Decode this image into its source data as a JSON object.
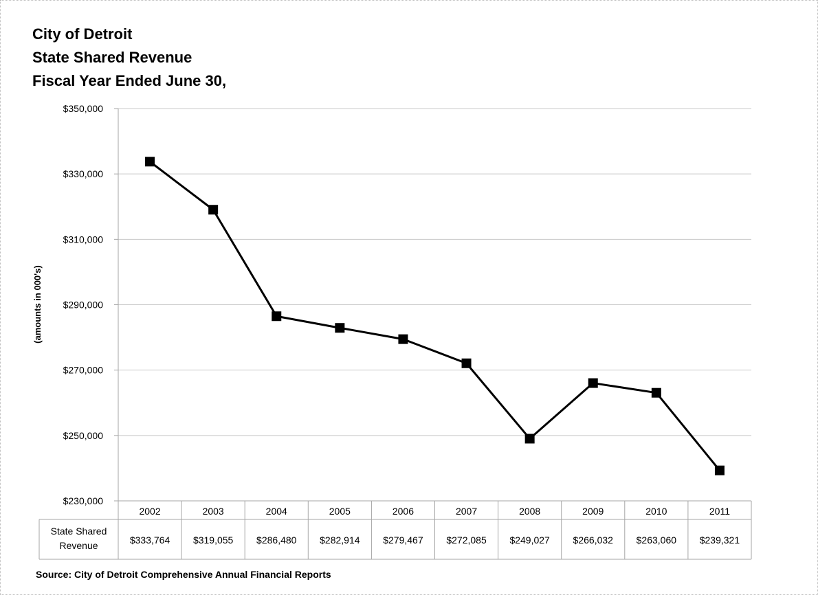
{
  "chart_data": {
    "type": "line",
    "title": [
      "City of Detroit",
      "State Shared Revenue",
      "Fiscal Year Ended June 30,"
    ],
    "ylabel": "(amounts in 000's)",
    "ylim": [
      230000,
      350000
    ],
    "y_ticks": [
      "$350,000",
      "$330,000",
      "$310,000",
      "$290,000",
      "$270,000",
      "$250,000",
      "$230,000"
    ],
    "y_tick_values": [
      350000,
      330000,
      310000,
      290000,
      270000,
      250000,
      230000
    ],
    "categories": [
      "2002",
      "2003",
      "2004",
      "2005",
      "2006",
      "2007",
      "2008",
      "2009",
      "2010",
      "2011"
    ],
    "grid": "horizontal",
    "series": [
      {
        "name": "State Shared Revenue",
        "values": [
          333764,
          319055,
          286480,
          282914,
          279467,
          272085,
          249027,
          266032,
          263060,
          239321
        ],
        "value_labels": [
          "$333,764",
          "$319,055",
          "$286,480",
          "$282,914",
          "$279,467",
          "$272,085",
          "$249,027",
          "$266,032",
          "$263,060",
          "$239,321"
        ],
        "color": "#000000",
        "marker": "square"
      }
    ],
    "data_table": {
      "row_label_lines": [
        "State Shared",
        "Revenue"
      ]
    },
    "source": "Source:  City of Detroit Comprehensive Annual Financial Reports"
  }
}
